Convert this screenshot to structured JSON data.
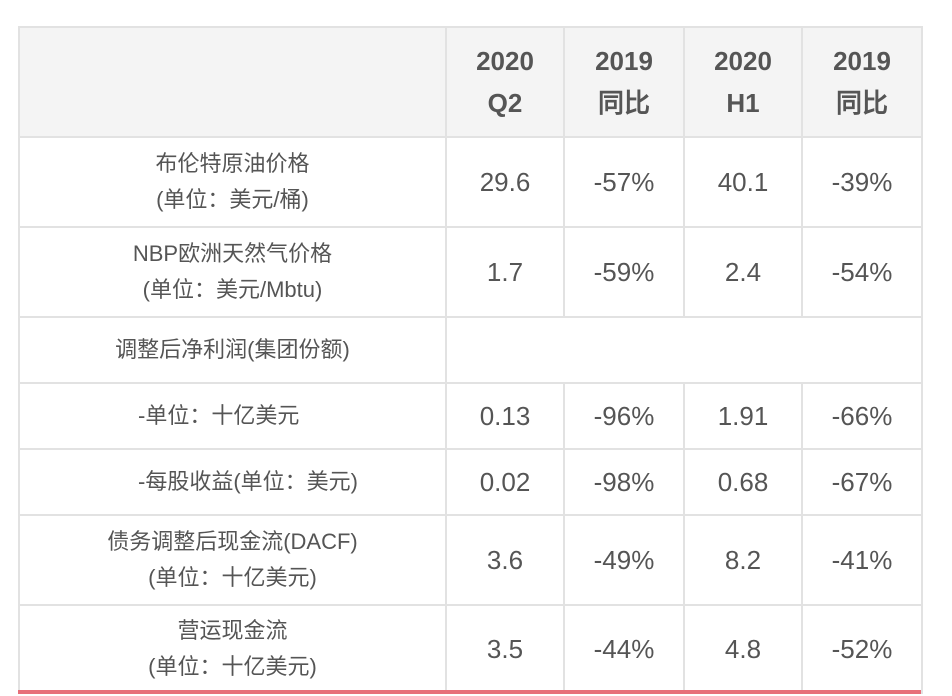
{
  "header": {
    "col1": {
      "line1": "2020",
      "line2": "Q2"
    },
    "col2": {
      "line1": "2019",
      "line2": "同比"
    },
    "col3": {
      "line1": "2020",
      "line2": "H1"
    },
    "col4": {
      "line1": "2019",
      "line2": "同比"
    }
  },
  "rows": [
    {
      "label1": "布伦特原油价格",
      "label2": "(单位：美元/桶)",
      "q2": "29.6",
      "q2_yoy": "-57%",
      "h1": "40.1",
      "h1_yoy": "-39%"
    },
    {
      "label1": "NBP欧洲天然气价格",
      "label2": "(单位：美元/Mbtu)",
      "q2": "1.7",
      "q2_yoy": "-59%",
      "h1": "2.4",
      "h1_yoy": "-54%"
    },
    {
      "label1": "调整后净利润(集团份额)"
    },
    {
      "label1": "-单位：十亿美元",
      "q2": "0.13",
      "q2_yoy": "-96%",
      "h1": "1.91",
      "h1_yoy": "-66%"
    },
    {
      "label1": "-每股收益(单位：美元)",
      "q2": "0.02",
      "q2_yoy": "-98%",
      "h1": "0.68",
      "h1_yoy": "-67%"
    },
    {
      "label1": "债务调整后现金流(DACF)",
      "label2": "(单位：十亿美元)",
      "q2": "3.6",
      "q2_yoy": "-49%",
      "h1": "8.2",
      "h1_yoy": "-41%"
    },
    {
      "label1": "营运现金流",
      "label2": "(单位：十亿美元)",
      "q2": "3.5",
      "q2_yoy": "-44%",
      "h1": "4.8",
      "h1_yoy": "-52%"
    }
  ]
}
